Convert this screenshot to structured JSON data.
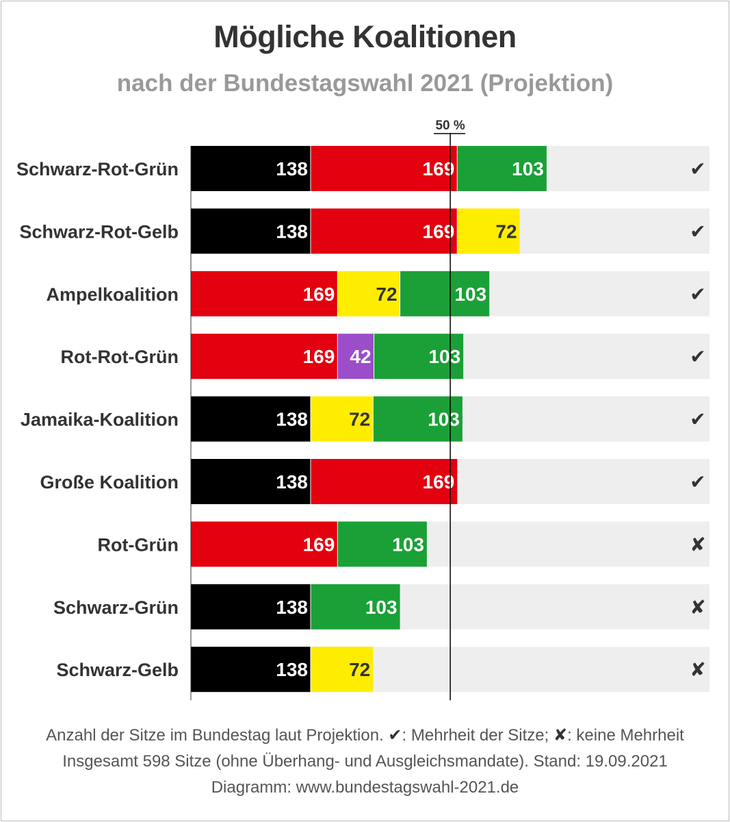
{
  "title": "Mögliche Koalitionen",
  "subtitle": "nach der Bundestagswahl 2021 (Projektion)",
  "chart_data": {
    "type": "bar",
    "orientation": "horizontal",
    "stacked": true,
    "total_seats": 598,
    "reference_line": {
      "label": "50 %",
      "value": 299
    },
    "colors": {
      "CDU/CSU": "#000000",
      "SPD": "#e3000f",
      "Grüne": "#1aa037",
      "FDP": "#ffed00",
      "Linke": "#9b4dca"
    },
    "background_track_color": "#eeeeee",
    "rows": [
      {
        "name": "Schwarz-Rot-Grün",
        "majority": true,
        "segments": [
          {
            "party": "CDU/CSU",
            "seats": 138
          },
          {
            "party": "SPD",
            "seats": 169
          },
          {
            "party": "Grüne",
            "seats": 103
          }
        ]
      },
      {
        "name": "Schwarz-Rot-Gelb",
        "majority": true,
        "segments": [
          {
            "party": "CDU/CSU",
            "seats": 138
          },
          {
            "party": "SPD",
            "seats": 169
          },
          {
            "party": "FDP",
            "seats": 72
          }
        ]
      },
      {
        "name": "Ampelkoalition",
        "majority": true,
        "segments": [
          {
            "party": "SPD",
            "seats": 169
          },
          {
            "party": "FDP",
            "seats": 72
          },
          {
            "party": "Grüne",
            "seats": 103
          }
        ]
      },
      {
        "name": "Rot-Rot-Grün",
        "majority": true,
        "segments": [
          {
            "party": "SPD",
            "seats": 169
          },
          {
            "party": "Linke",
            "seats": 42
          },
          {
            "party": "Grüne",
            "seats": 103
          }
        ]
      },
      {
        "name": "Jamaika-Koalition",
        "majority": true,
        "segments": [
          {
            "party": "CDU/CSU",
            "seats": 138
          },
          {
            "party": "FDP",
            "seats": 72
          },
          {
            "party": "Grüne",
            "seats": 103
          }
        ]
      },
      {
        "name": "Große Koalition",
        "majority": true,
        "segments": [
          {
            "party": "CDU/CSU",
            "seats": 138
          },
          {
            "party": "SPD",
            "seats": 169
          }
        ]
      },
      {
        "name": "Rot-Grün",
        "majority": false,
        "segments": [
          {
            "party": "SPD",
            "seats": 169
          },
          {
            "party": "Grüne",
            "seats": 103
          }
        ]
      },
      {
        "name": "Schwarz-Grün",
        "majority": false,
        "segments": [
          {
            "party": "CDU/CSU",
            "seats": 138
          },
          {
            "party": "Grüne",
            "seats": 103
          }
        ]
      },
      {
        "name": "Schwarz-Gelb",
        "majority": false,
        "segments": [
          {
            "party": "CDU/CSU",
            "seats": 138
          },
          {
            "party": "FDP",
            "seats": 72
          }
        ]
      }
    ],
    "marks": {
      "majority": "✔",
      "no_majority": "✘"
    }
  },
  "footer": {
    "line1_a": "Anzahl der Sitze im Bundestag laut Projektion. ",
    "line1_check": "✔",
    "line1_b": ": Mehrheit der Sitze; ",
    "line1_cross": "✘",
    "line1_c": ": keine Mehrheit",
    "line2": "Insgesamt 598 Sitze (ohne Überhang- und Ausgleichsmandate). Stand: 19.09.2021",
    "line3": "Diagramm: www.bundestagswahl-2021.de"
  }
}
